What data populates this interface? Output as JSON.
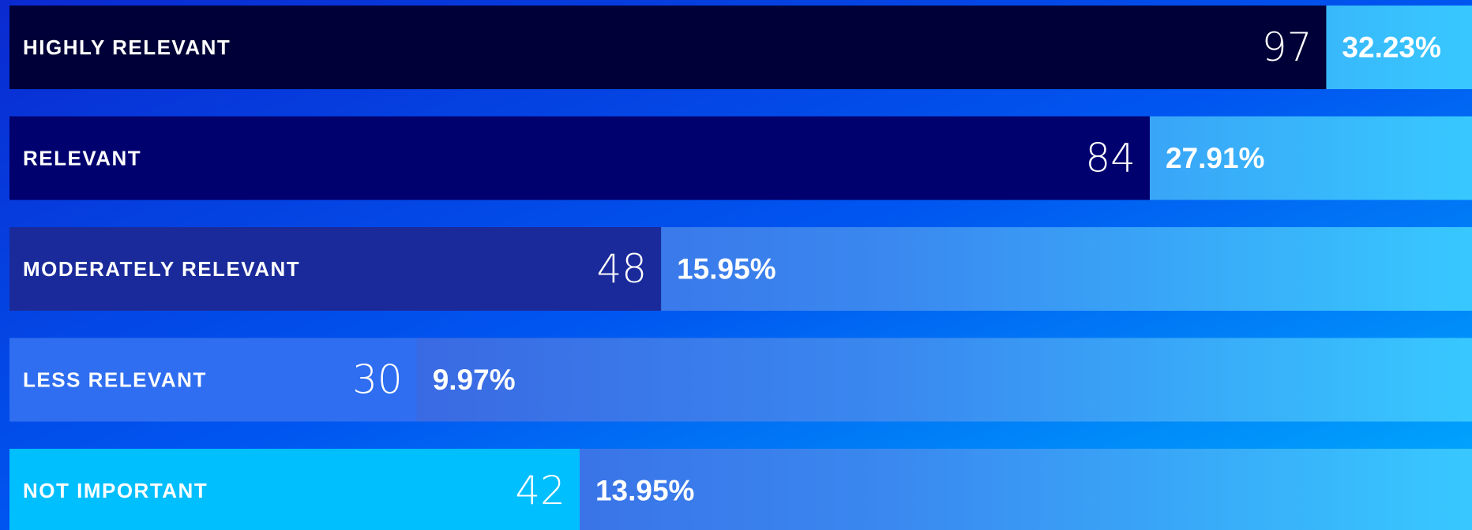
{
  "chart_data": {
    "type": "bar",
    "orientation": "horizontal",
    "categories": [
      "HIGHLY RELEVANT",
      "RELEVANT",
      "MODERATELY RELEVANT",
      "LESS RELEVANT",
      "NOT IMPORTANT"
    ],
    "values": [
      97,
      84,
      48,
      30,
      42
    ],
    "percentage_labels": [
      "32.23%",
      "27.91%",
      "15.95%",
      "9.97%",
      "13.95%"
    ],
    "colors": [
      "#000038",
      "#00006e",
      "#1a2a9a",
      "#2f6ef0",
      "#00bfff"
    ],
    "xlim": [
      0,
      100
    ]
  }
}
